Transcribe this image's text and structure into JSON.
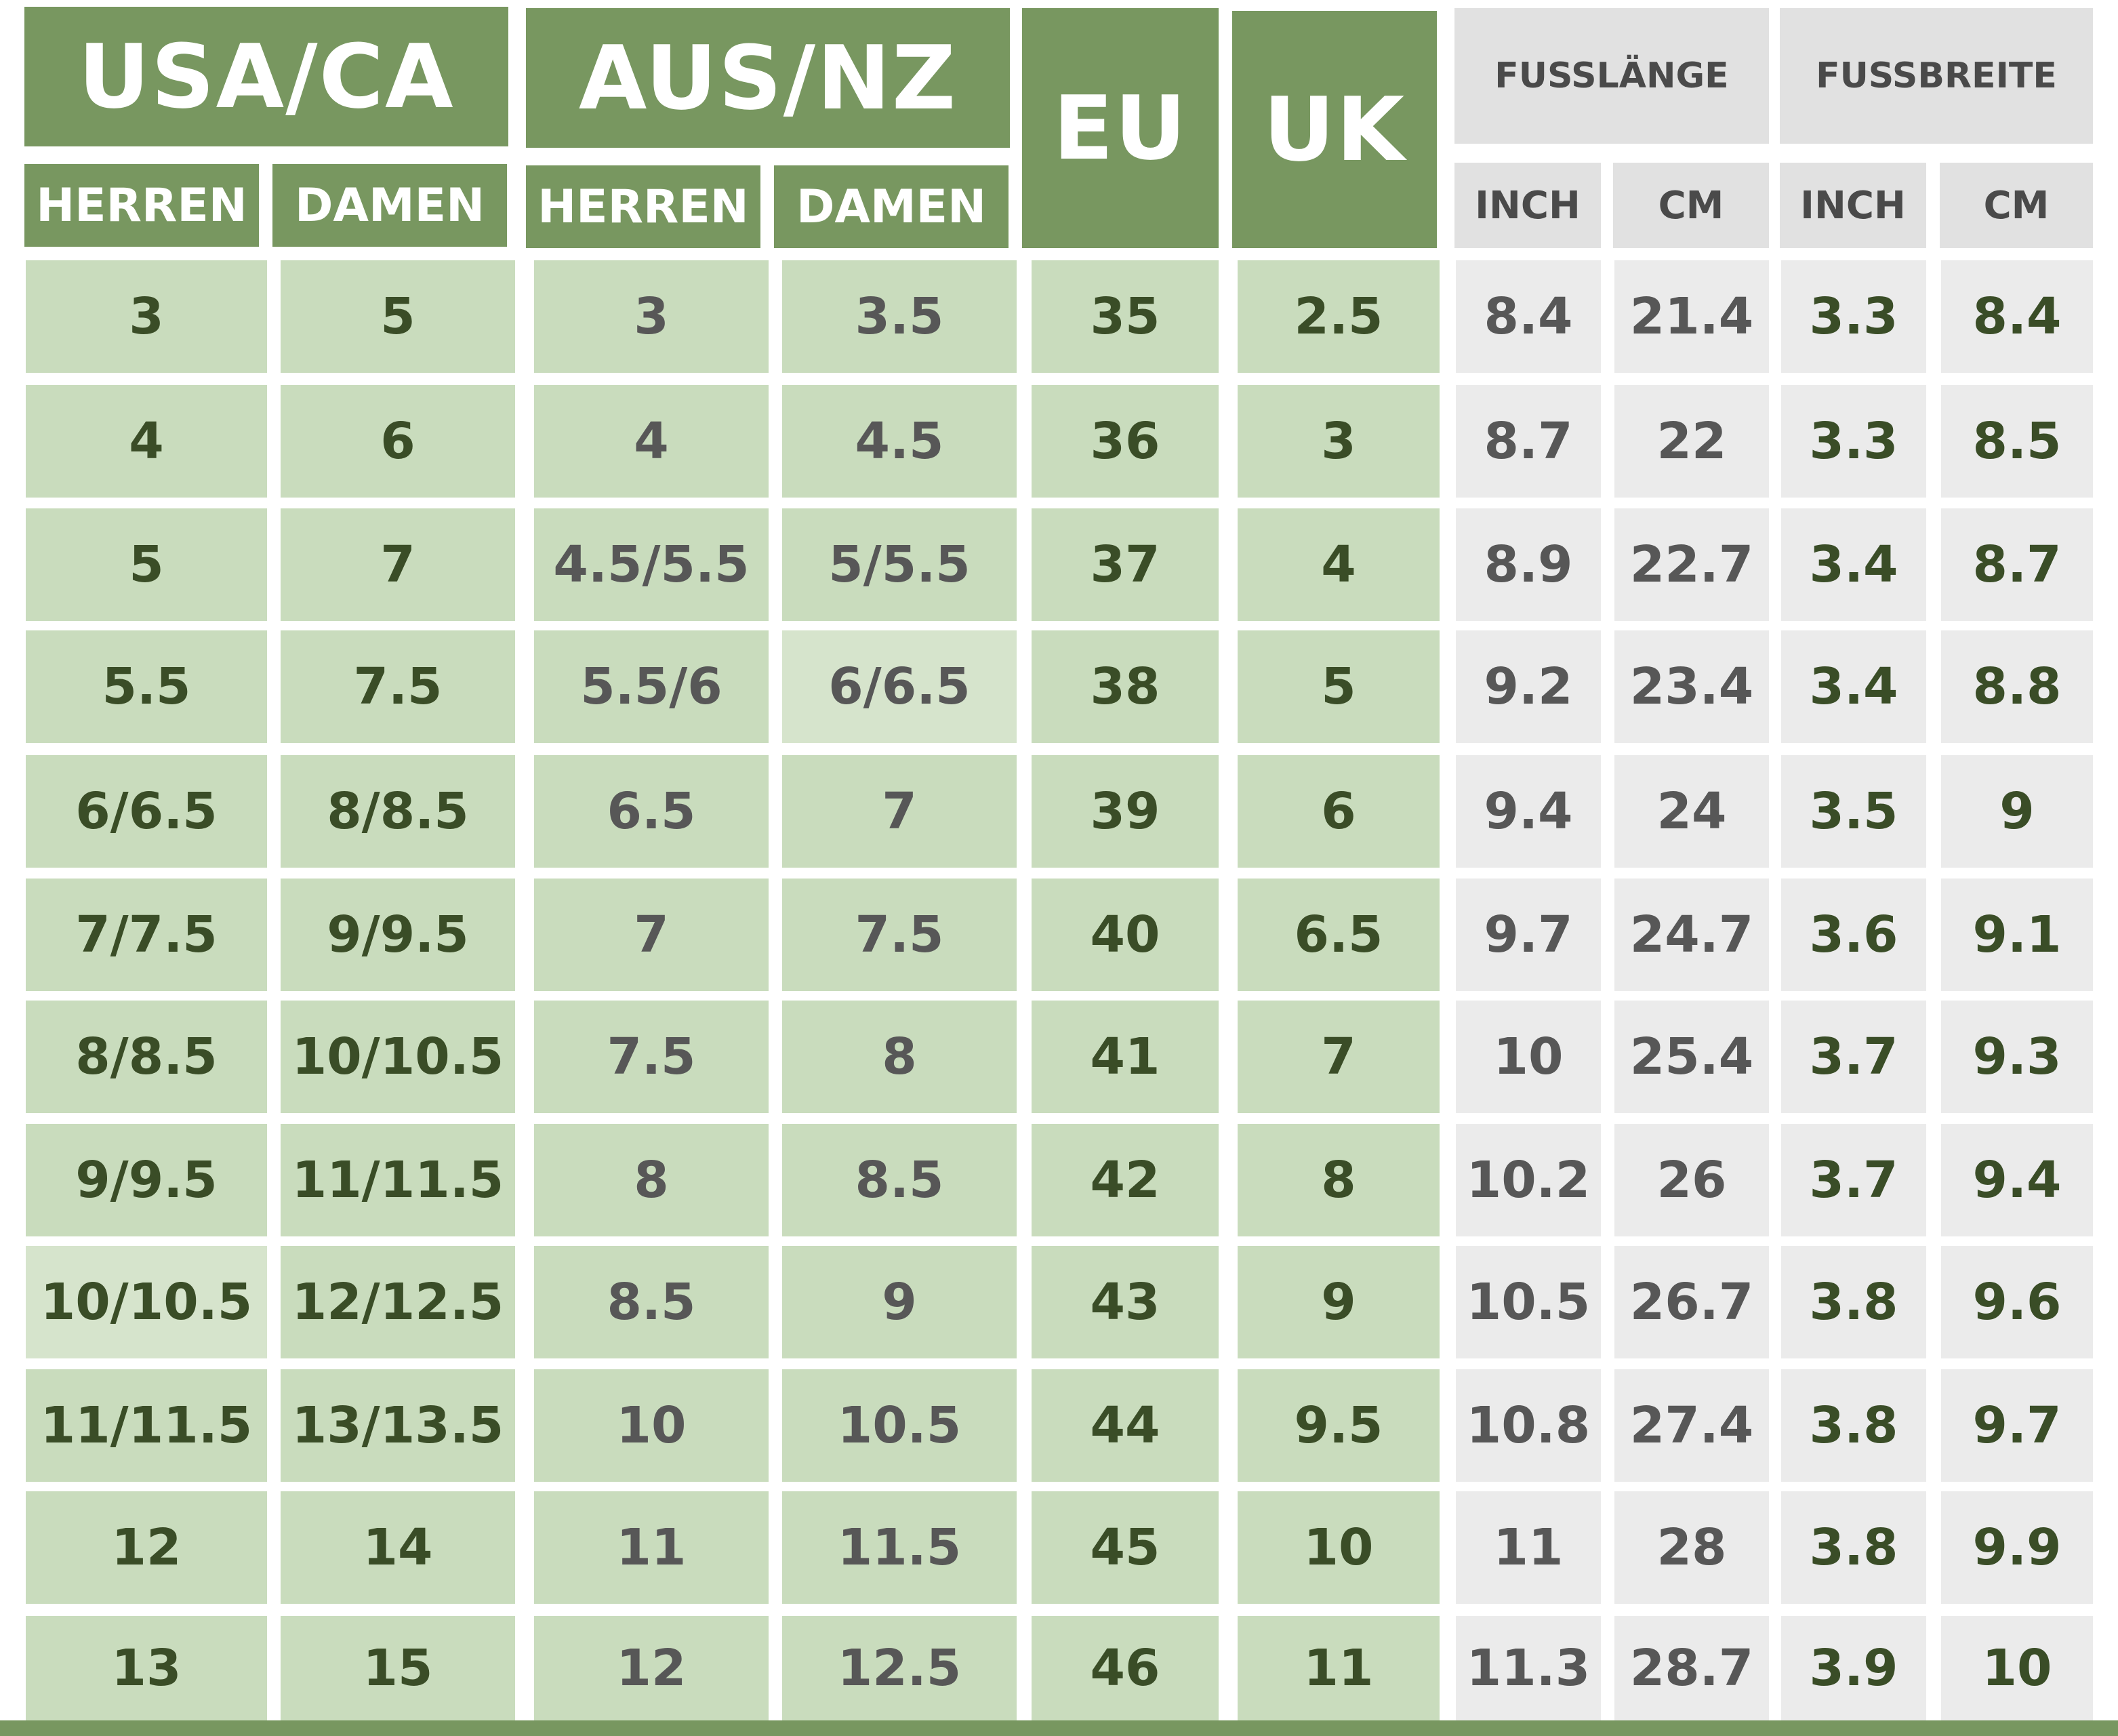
{
  "header": {
    "usa_ca": "USA/CA",
    "aus_nz": "AUS/NZ",
    "eu": "EU",
    "uk": "UK",
    "fusslaenge": "FUSSLÄNGE",
    "fussbreite": "FUSSBREITE",
    "usa_herren": "HERREN",
    "usa_damen": "DAMEN",
    "aus_herren": "HERREN",
    "aus_damen": "DAMEN",
    "fl_inch": "INCH",
    "fl_cm": "CM",
    "fb_inch": "INCH",
    "fb_cm": "CM"
  },
  "rows": [
    [
      "3",
      "5",
      "3",
      "3.5",
      "35",
      "2.5",
      "8.4",
      "21.4",
      "3.3",
      "8.4"
    ],
    [
      "4",
      "6",
      "4",
      "4.5",
      "36",
      "3",
      "8.7",
      "22",
      "3.3",
      "8.5"
    ],
    [
      "5",
      "7",
      "4.5/5.5",
      "5/5.5",
      "37",
      "4",
      "8.9",
      "22.7",
      "3.4",
      "8.7"
    ],
    [
      "5.5",
      "7.5",
      "5.5/6",
      "6/6.5",
      "38",
      "5",
      "9.2",
      "23.4",
      "3.4",
      "8.8"
    ],
    [
      "6/6.5",
      "8/8.5",
      "6.5",
      "7",
      "39",
      "6",
      "9.4",
      "24",
      "3.5",
      "9"
    ],
    [
      "7/7.5",
      "9/9.5",
      "7",
      "7.5",
      "40",
      "6.5",
      "9.7",
      "24.7",
      "3.6",
      "9.1"
    ],
    [
      "8/8.5",
      "10/10.5",
      "7.5",
      "8",
      "41",
      "7",
      "10",
      "25.4",
      "3.7",
      "9.3"
    ],
    [
      "9/9.5",
      "11/11.5",
      "8",
      "8.5",
      "42",
      "8",
      "10.2",
      "26",
      "3.7",
      "9.4"
    ],
    [
      "10/10.5",
      "12/12.5",
      "8.5",
      "9",
      "43",
      "9",
      "10.5",
      "26.7",
      "3.8",
      "9.6"
    ],
    [
      "11/11.5",
      "13/13.5",
      "10",
      "10.5",
      "44",
      "9.5",
      "10.8",
      "27.4",
      "3.8",
      "9.7"
    ],
    [
      "12",
      "14",
      "11",
      "11.5",
      "45",
      "10",
      "11",
      "28",
      "3.8",
      "9.9"
    ],
    [
      "13",
      "15",
      "12",
      "12.5",
      "46",
      "11",
      "11.3",
      "28.7",
      "3.9",
      "10"
    ]
  ],
  "colors": {
    "header_green": "#789760",
    "cell_green": "#c9dcbd",
    "cell_grey": "#ebebeb",
    "text_dark_green": "#3a4d27",
    "text_grey": "#575757"
  }
}
